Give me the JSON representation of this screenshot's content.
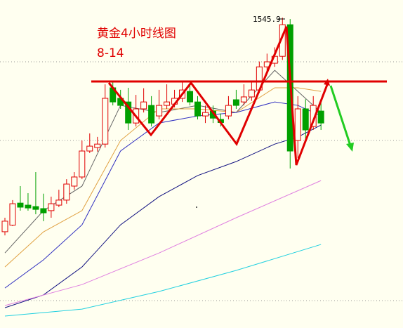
{
  "chart_data": {
    "type": "candlestick",
    "title": "黄金4小时线图",
    "subtitle": "8-14",
    "high_label": 1545.9,
    "ylim": [
      1348.6,
      1557.1
    ],
    "up_color": "#e00000",
    "down_color": "#00a000",
    "candles": [
      [
        1409.8,
        1416.5,
        1418.7,
        1407.5
      ],
      [
        1414.0,
        1427.6,
        1429.9,
        1413.4
      ],
      [
        1428.0,
        1425.4,
        1438.8,
        1423.2
      ],
      [
        1426.7,
        1424.9,
        1434.3,
        1423.2
      ],
      [
        1425.8,
        1424.0,
        1447.7,
        1420.9
      ],
      [
        1424.5,
        1421.8,
        1434.0,
        1416.5
      ],
      [
        1423.2,
        1427.6,
        1432.1,
        1418.7
      ],
      [
        1426.7,
        1429.9,
        1436.5,
        1425.4
      ],
      [
        1429.9,
        1440.1,
        1443.2,
        1427.6
      ],
      [
        1438.8,
        1444.6,
        1447.7,
        1436.5
      ],
      [
        1444.6,
        1461.1,
        1467.8,
        1443.2
      ],
      [
        1461.1,
        1464.2,
        1472.3,
        1459.8
      ],
      [
        1463.3,
        1465.5,
        1470.1,
        1460.7
      ],
      [
        1465.5,
        1494.6,
        1503.5,
        1463.3
      ],
      [
        1501.3,
        1492.3,
        1505.7,
        1490.1
      ],
      [
        1494.6,
        1490.1,
        1500.0,
        1487.9
      ],
      [
        1492.3,
        1478.9,
        1501.3,
        1474.5
      ],
      [
        1478.9,
        1487.9,
        1496.8,
        1476.7
      ],
      [
        1487.9,
        1492.3,
        1501.0,
        1485.6
      ],
      [
        1490.1,
        1478.9,
        1496.0,
        1476.7
      ],
      [
        1483.4,
        1490.1,
        1500.0,
        1481.2
      ],
      [
        1490.1,
        1492.3,
        1503.5,
        1487.9
      ],
      [
        1490.9,
        1494.6,
        1500.0,
        1488.9
      ],
      [
        1494.6,
        1499.9,
        1505.0,
        1492.3
      ],
      [
        1499.0,
        1492.3,
        1503.5,
        1490.1
      ],
      [
        1492.3,
        1483.4,
        1496.0,
        1481.2
      ],
      [
        1483.4,
        1485.6,
        1490.0,
        1478.9
      ],
      [
        1486.5,
        1482.0,
        1490.0,
        1478.9
      ],
      [
        1481.2,
        1479.2,
        1485.0,
        1476.7
      ],
      [
        1483.4,
        1490.1,
        1496.0,
        1481.2
      ],
      [
        1493.7,
        1490.1,
        1500.0,
        1487.9
      ],
      [
        1492.3,
        1495.5,
        1503.5,
        1490.1
      ],
      [
        1495.5,
        1499.9,
        1505.0,
        1493.0
      ],
      [
        1499.9,
        1514.6,
        1518.0,
        1498.0
      ],
      [
        1514.6,
        1517.8,
        1523.0,
        1512.0
      ],
      [
        1516.9,
        1521.3,
        1527.0,
        1514.6
      ],
      [
        1521.3,
        1541.4,
        1545.9,
        1519.0
      ],
      [
        1541.4,
        1461.1,
        1545.0,
        1450.0
      ],
      [
        1467.8,
        1487.9,
        1496.0,
        1456.6
      ],
      [
        1487.9,
        1474.5,
        1494.0,
        1467.8
      ],
      [
        1476.7,
        1490.1,
        1496.0,
        1474.5
      ],
      [
        1486.5,
        1478.9,
        1492.0,
        1474.5
      ]
    ],
    "lines": [
      {
        "color": "#666666",
        "x": [
          0,
          5,
          10,
          15,
          20,
          25,
          30,
          35,
          38,
          41
        ],
        "values": [
          1396.3,
          1423.2,
          1438.8,
          1490.1,
          1485.6,
          1490.1,
          1485.6,
          1512.4,
          1499.0,
          1485.6
        ]
      },
      {
        "color": "#e0a040",
        "x": [
          0,
          5,
          10,
          15,
          20,
          25,
          30,
          35,
          38,
          41
        ],
        "values": [
          1387.4,
          1409.7,
          1423.2,
          1467.8,
          1487.9,
          1487.9,
          1485.6,
          1501.3,
          1501.3,
          1499.0
        ]
      },
      {
        "color": "#3030c0",
        "x": [
          0,
          5,
          10,
          15,
          20,
          25,
          30,
          35,
          38,
          41
        ],
        "values": [
          1374.0,
          1391.9,
          1414.2,
          1461.1,
          1478.9,
          1483.4,
          1485.6,
          1492.3,
          1490.1,
          1483.4
        ]
      },
      {
        "color": "#101080",
        "x": [
          0,
          5,
          10,
          15,
          20,
          25,
          30,
          35,
          38,
          41
        ],
        "values": [
          1361.5,
          1369.6,
          1387.4,
          1414.2,
          1432.1,
          1445.5,
          1454.4,
          1465.5,
          1470.0,
          1477.6
        ]
      },
      {
        "color": "#e080e0",
        "x": [
          0,
          10,
          20,
          30,
          41
        ],
        "values": [
          1362.9,
          1376.2,
          1396.3,
          1418.7,
          1442.3
        ]
      },
      {
        "color": "#20d0e0",
        "x": [
          0,
          10,
          20,
          30,
          41
        ],
        "values": [
          1356.2,
          1360.6,
          1371.8,
          1385.2,
          1401.7
        ]
      }
    ]
  }
}
